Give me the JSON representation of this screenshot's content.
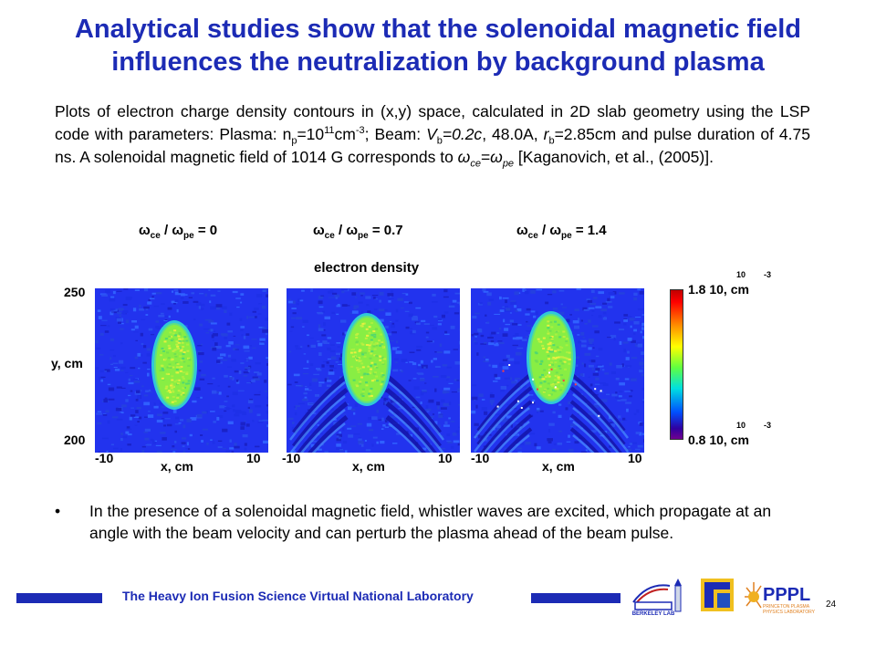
{
  "title": {
    "line1": "Analytical studies show that the solenoidal magnetic field",
    "line2": "influences the neutralization by background plasma"
  },
  "description": {
    "p1": "Plots of electron charge density contours in (x,y) space, calculated in 2D slab geometry using the LSP code with parameters: Plasma: n",
    "p_sub": "p",
    "p2": "=10",
    "p_sup1": "11",
    "p3": "cm",
    "p_sup2": "-3",
    "p4": "; Beam: ",
    "vb_v": "V",
    "vb_sub": "b",
    "p5": "=0.2c",
    "p6": ", 48.0A, ",
    "rb_r": "r",
    "rb_sub": "b",
    "p7": "=2.85cm and pulse duration of 4.75 ns. A solenoidal magnetic field of 1014 G corresponds to ",
    "omega": "ω",
    "ce_sub": "ce",
    "eq": "=",
    "pe_sub": "pe",
    "p8": " [Kaganovich, et al., (2005)]."
  },
  "figure": {
    "omega": "ω",
    "ce": "ce",
    "slash": "/",
    "pe": "pe",
    "ratios": [
      "= 0",
      "= 0.7",
      "= 1.4"
    ],
    "title": "electron density",
    "y_label": "y, cm",
    "y_top": "250",
    "y_bottom": "200",
    "x_label": "x, cm",
    "x_min": "-10",
    "x_max": "10",
    "colorbar": {
      "max_label": "1.8 10, cm",
      "min_label": "0.8 10, cm",
      "exp_base": "10",
      "exp_power": "-3"
    }
  },
  "bullet": {
    "symbol": "•",
    "text": "In the presence of a solenoidal magnetic field, whistler waves are excited, which propagate at an angle with the beam velocity and can perturb the plasma ahead of the beam pulse."
  },
  "footer": {
    "text": "The Heavy Ion Fusion Science Virtual National Laboratory",
    "page": "24",
    "logo_berkeley": "BERKELEY LAB",
    "logo_pppl": "PPPL",
    "logo_pppl_sub1": "PRINCETON PLASMA",
    "logo_pppl_sub2": "PHYSICS LABORATORY"
  },
  "colors": {
    "title": "#1c2bb5",
    "field_bg": "#2233ee",
    "beam": "#88ee44"
  }
}
